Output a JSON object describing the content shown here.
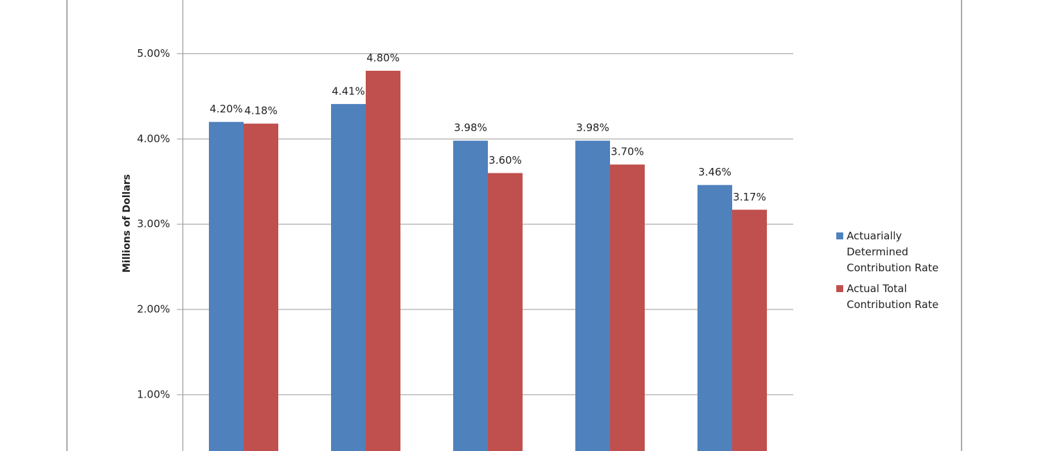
{
  "chart_data": {
    "type": "bar",
    "y_axis_label": "Millions of Dollars",
    "categories": [
      null,
      null,
      null,
      null,
      null
    ],
    "series": [
      {
        "name": "Actuarially Determined Contribution Rate",
        "color": "#4f81bd",
        "values": [
          4.2,
          4.41,
          3.98,
          3.98,
          3.46
        ],
        "value_labels": [
          "4.20%",
          "4.41%",
          "3.98%",
          "3.98%",
          "3.46%"
        ]
      },
      {
        "name": "Actual Total Contribution Rate",
        "color": "#c0504d",
        "values": [
          4.18,
          4.8,
          3.6,
          3.7,
          3.17
        ],
        "value_labels": [
          "4.18%",
          "4.80%",
          "3.60%",
          "3.70%",
          "3.17%"
        ]
      }
    ],
    "ylim": [
      0.34,
      5.63
    ],
    "yticks": [
      {
        "value": 1,
        "label": "1.00%"
      },
      {
        "value": 2,
        "label": "2.00%"
      },
      {
        "value": 3,
        "label": "3.00%"
      },
      {
        "value": 4,
        "label": "4.00%"
      },
      {
        "value": 5,
        "label": "5.00%"
      }
    ],
    "grid": true,
    "legend": "right"
  }
}
